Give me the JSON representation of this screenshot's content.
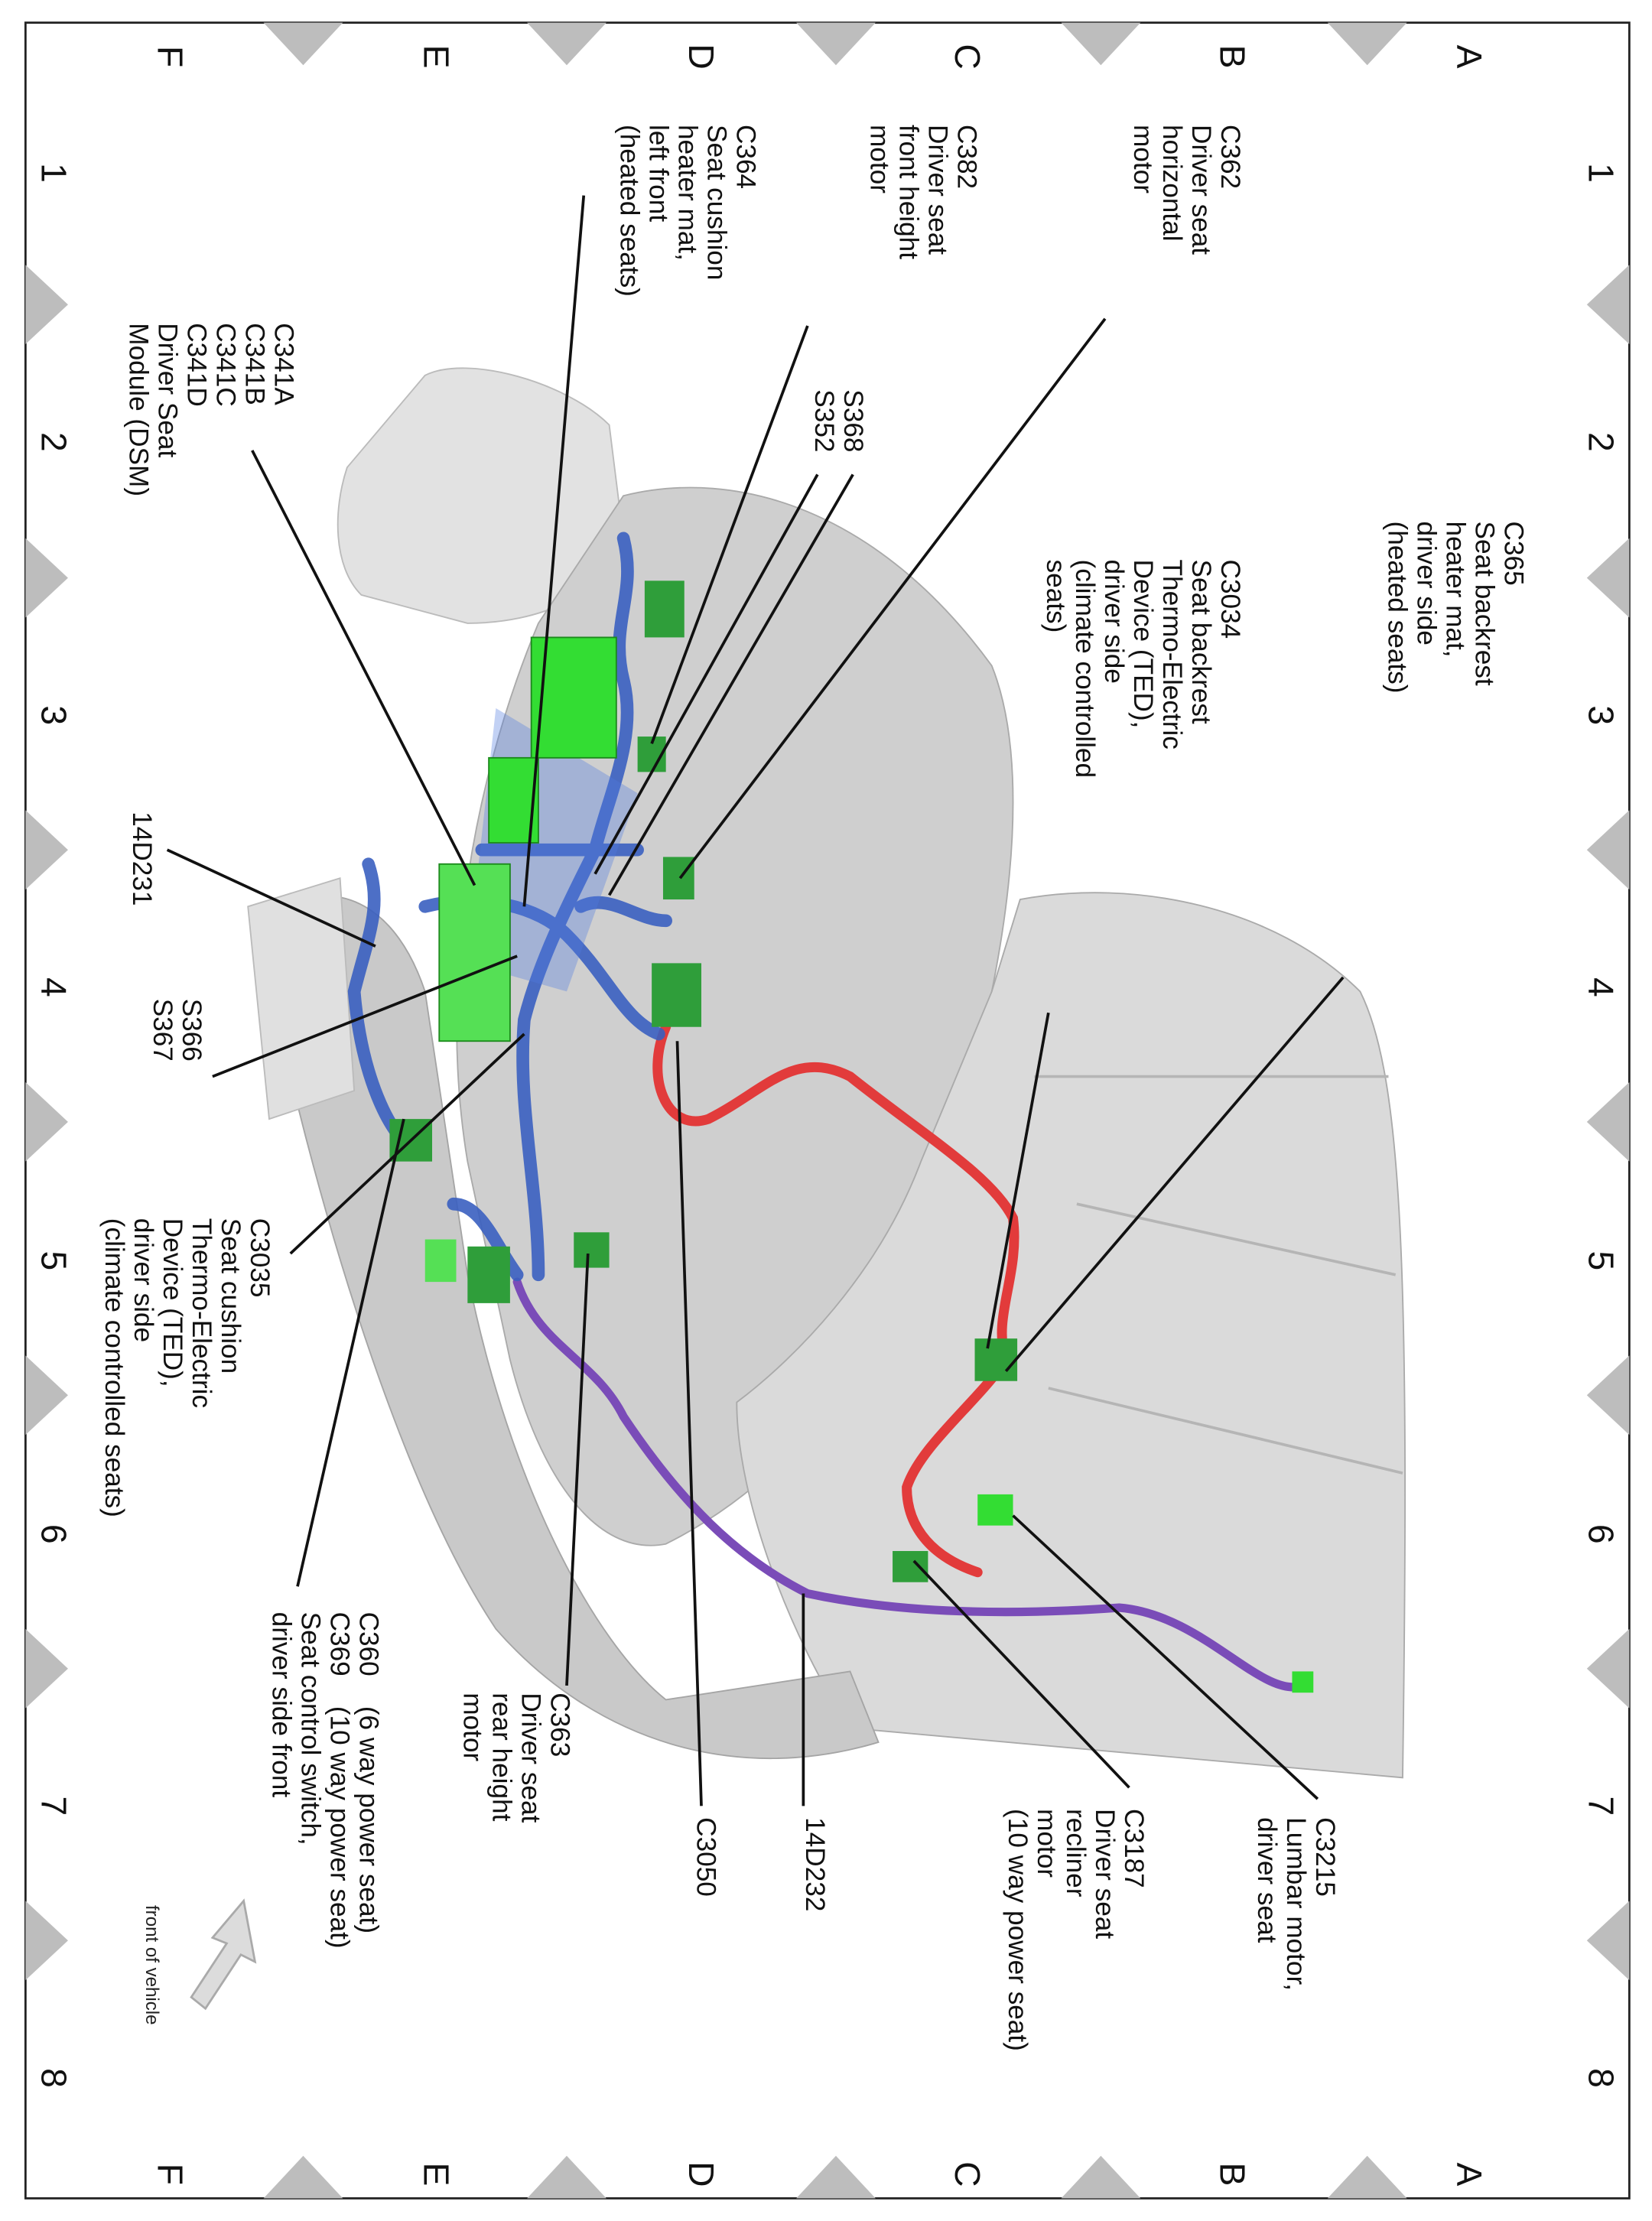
{
  "grid": {
    "columns": [
      "1",
      "2",
      "3",
      "4",
      "5",
      "6",
      "7",
      "8"
    ],
    "rows": [
      "A",
      "B",
      "C",
      "D",
      "E",
      "F"
    ]
  },
  "colors": {
    "harness_blue": "#3a5fc0",
    "harness_red": "#e23b3b",
    "harness_purple": "#7a4cb8",
    "connector_green": "#2f9e3a",
    "highlight_green": "#33dd33",
    "seat_gray": "#d4d4d4",
    "border_triangle": "#bdbdbd"
  },
  "labels": [
    {
      "id": "C365",
      "lines": [
        "C365",
        "Seat backrest",
        "heater mat,",
        "driver side",
        "(heated seats)"
      ]
    },
    {
      "id": "C3034",
      "lines": [
        "C3034",
        "Seat backrest",
        "Thermo-Electric",
        "Device (TED),",
        "driver side",
        "(climate controlled",
        "seats)"
      ]
    },
    {
      "id": "C362",
      "lines": [
        "C362",
        "Driver seat",
        "horizontal",
        "motor"
      ]
    },
    {
      "id": "C382",
      "lines": [
        "C382",
        "Driver seat",
        "front height",
        "motor"
      ]
    },
    {
      "id": "C364",
      "lines": [
        "C364",
        "Seat cushion",
        "heater mat,",
        "left front",
        "(heated seats)"
      ]
    },
    {
      "id": "S368-S352",
      "lines": [
        "S368",
        "S352"
      ]
    },
    {
      "id": "C341",
      "lines": [
        "C341A",
        "C341B",
        "C341C",
        "C341D",
        "Driver Seat",
        "Module (DSM)"
      ]
    },
    {
      "id": "14D231",
      "lines": [
        "14D231"
      ]
    },
    {
      "id": "S366-S367",
      "lines": [
        "S366",
        "S367"
      ]
    },
    {
      "id": "C3035",
      "lines": [
        "C3035",
        "Seat cushion",
        "Thermo-Electric",
        "Device (TED),",
        "driver side",
        "(climate controlled seats)"
      ]
    },
    {
      "id": "C360-C369",
      "lines": [
        "C360    (6 way power seat)",
        "C369    (10 way power seat)",
        "Seat control switch,",
        "driver side front"
      ]
    },
    {
      "id": "C363",
      "lines": [
        "C363",
        "Driver seat",
        "rear height",
        "motor"
      ]
    },
    {
      "id": "C3050",
      "lines": [
        "C3050"
      ]
    },
    {
      "id": "14D232",
      "lines": [
        "14D232"
      ]
    },
    {
      "id": "C3187",
      "lines": [
        "C3187",
        "Driver seat",
        "recliner",
        "motor",
        "(10 way power seat)"
      ]
    },
    {
      "id": "C3215",
      "lines": [
        "C3215",
        "Lumbar motor,",
        "driver seat"
      ]
    }
  ],
  "orientation": {
    "label": "front of vehicle",
    "icon": "arrow-icon"
  }
}
